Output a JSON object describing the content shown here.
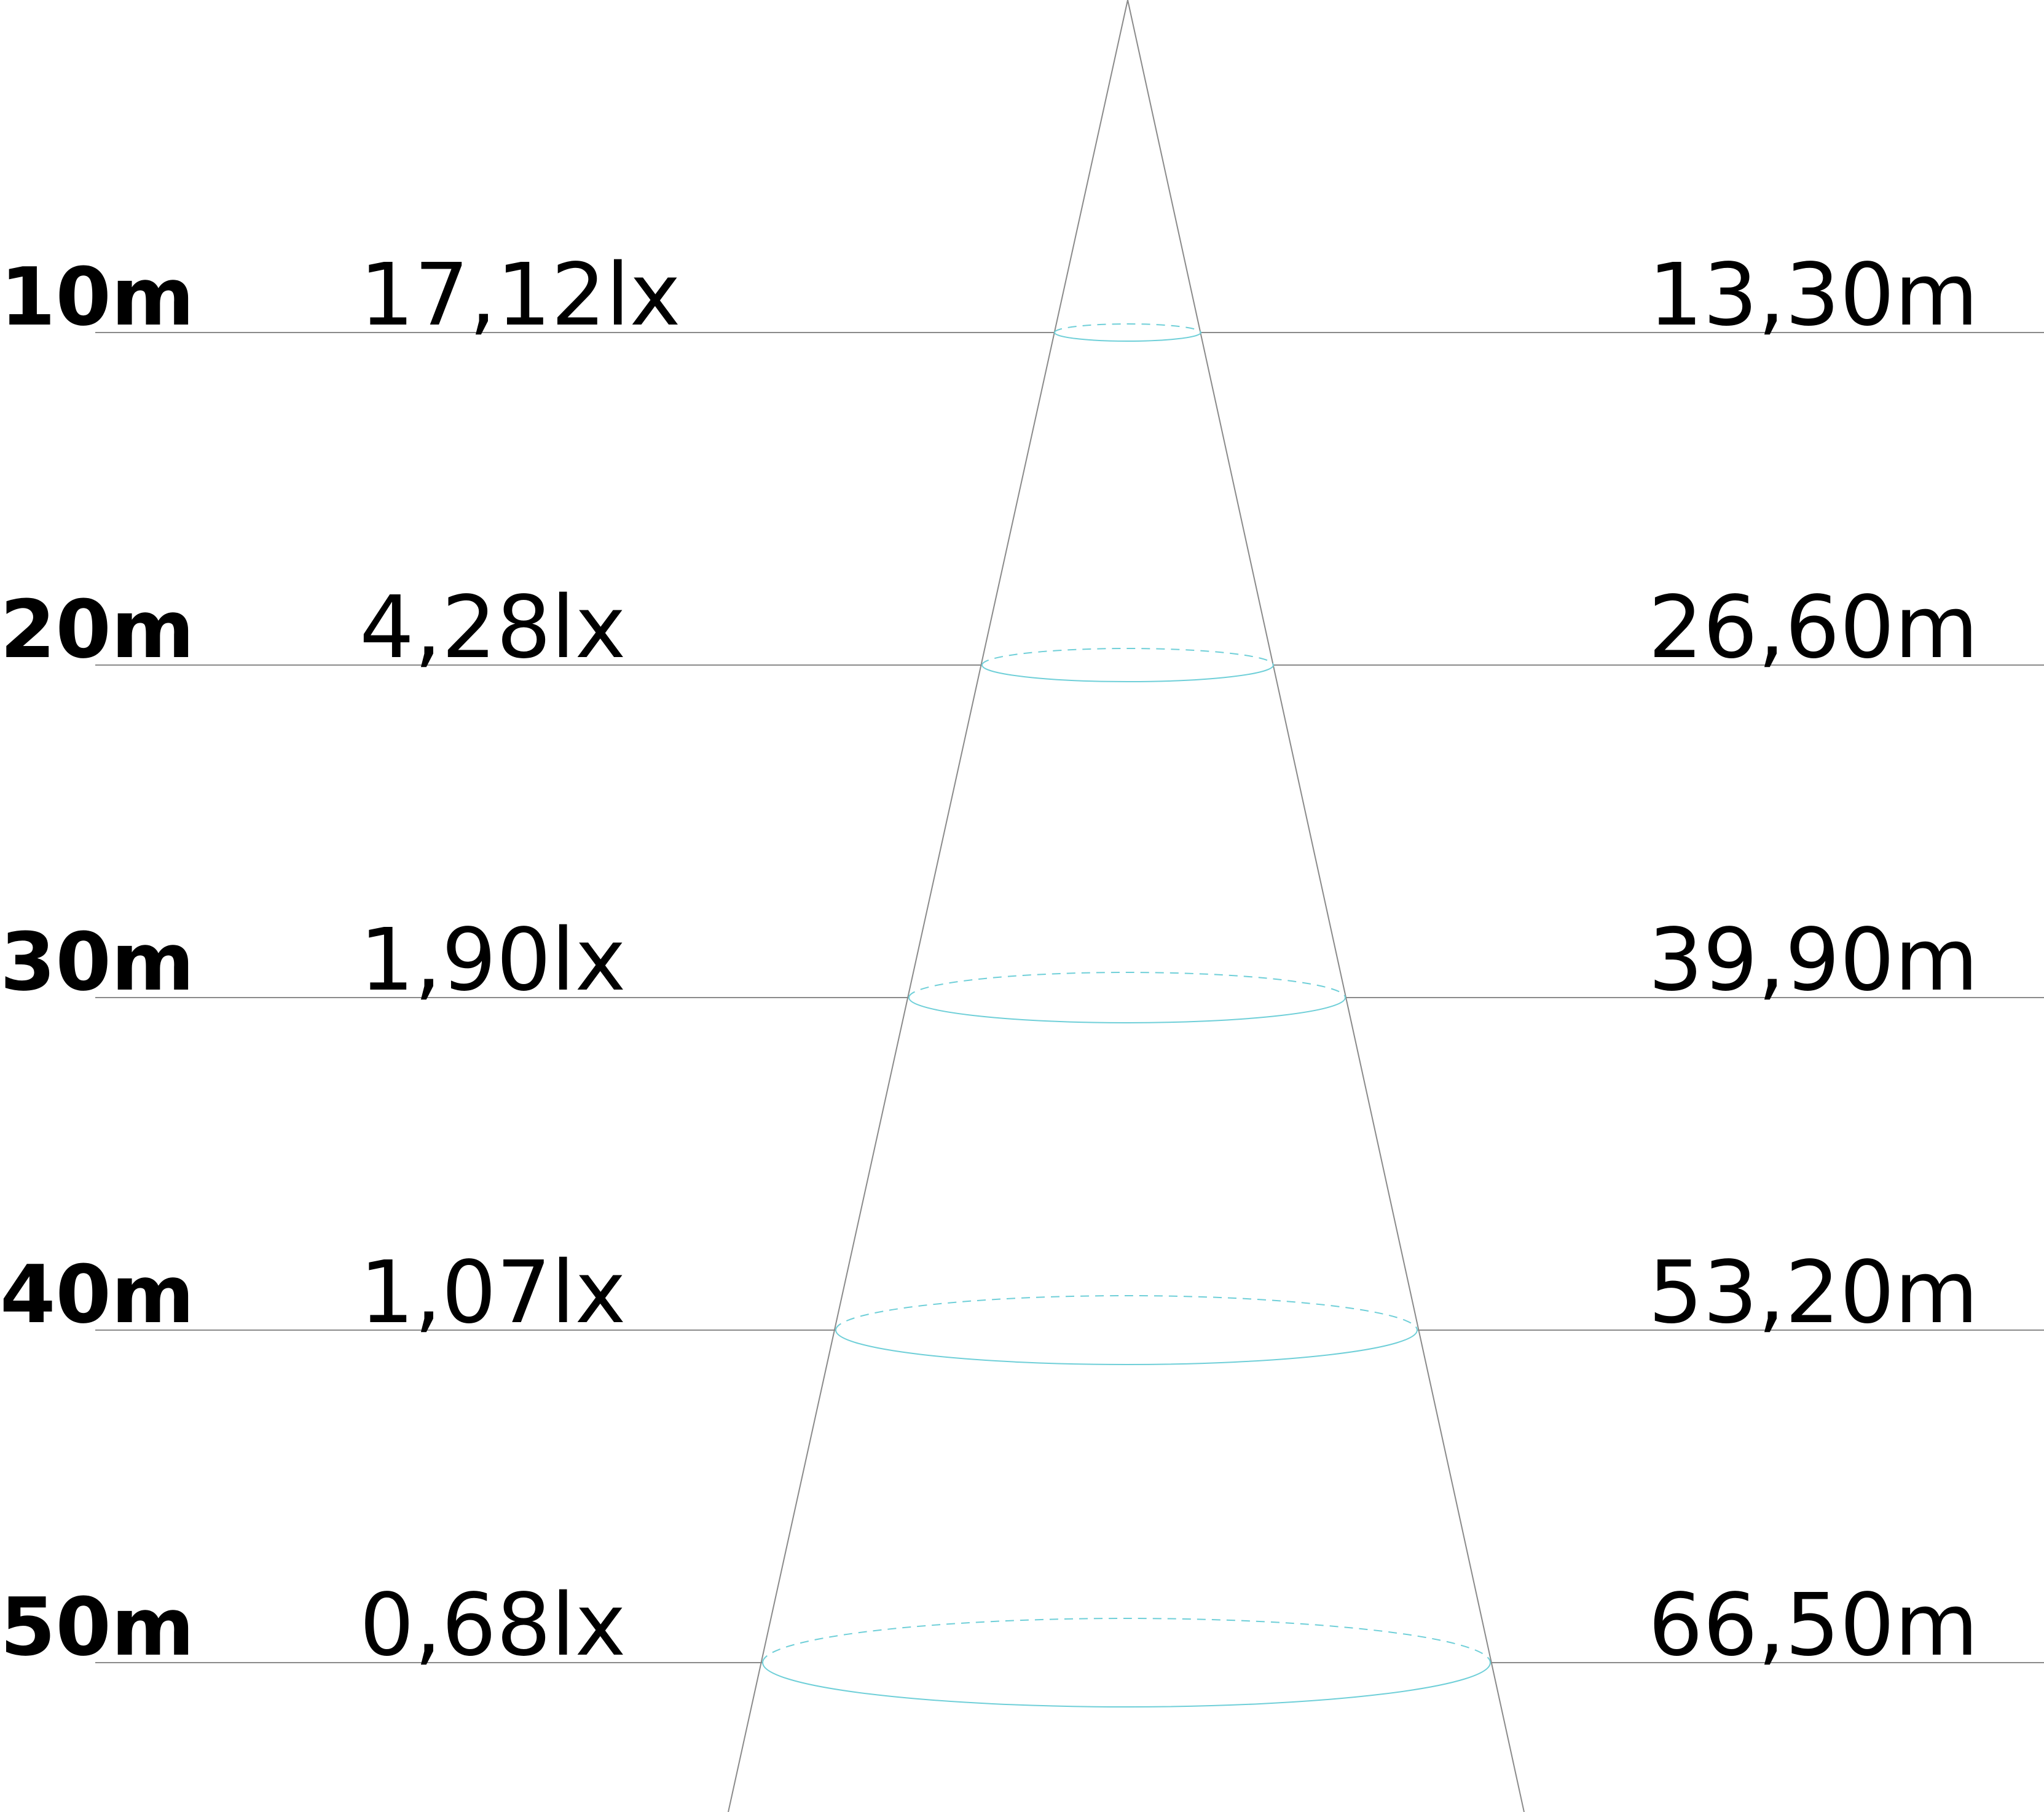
{
  "diagram": {
    "type": "light-beam-cone",
    "colors": {
      "background": "#ffffff",
      "lines": "#8a8a8a",
      "ellipse": "#6fcfd8",
      "text": "#000000"
    },
    "levels": [
      {
        "distance": "10m",
        "illuminance": "17,12lx",
        "diameter": "13,30m"
      },
      {
        "distance": "20m",
        "illuminance": "4,28lx",
        "diameter": "26,60m"
      },
      {
        "distance": "30m",
        "illuminance": "1,90lx",
        "diameter": "39,90m"
      },
      {
        "distance": "40m",
        "illuminance": "1,07lx",
        "diameter": "53,20m"
      },
      {
        "distance": "50m",
        "illuminance": "0,68lx",
        "diameter": "66,50m"
      }
    ]
  }
}
